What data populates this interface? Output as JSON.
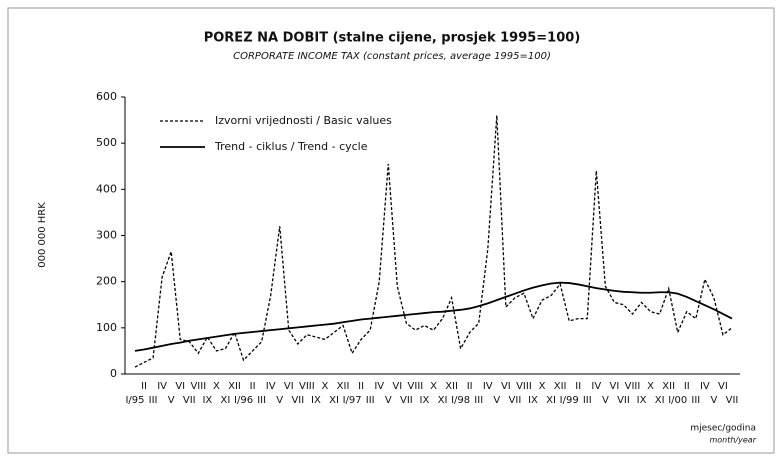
{
  "chart_data": {
    "type": "line",
    "title": "POREZ NA DOBIT (stalne cijene, prosjek 1995=100)",
    "subtitle": "CORPORATE INCOME TAX (constant prices, average 1995=100)",
    "y_label": "000 000 HRK",
    "x_label": "mjesec/godina",
    "x_label_en": "month/year",
    "categories": [
      "I/95",
      "II",
      "III",
      "IV",
      "V",
      "VI",
      "VII",
      "VIII",
      "IX",
      "X",
      "XI",
      "XII",
      "I/96",
      "II",
      "III",
      "IV",
      "V",
      "VI",
      "VII",
      "VIII",
      "IX",
      "X",
      "XI",
      "XII",
      "I/97",
      "II",
      "III",
      "IV",
      "V",
      "VI",
      "VII",
      "VIII",
      "IX",
      "X",
      "XI",
      "XII",
      "I/98",
      "II",
      "III",
      "IV",
      "V",
      "VI",
      "VII",
      "VIII",
      "IX",
      "X",
      "XI",
      "XII",
      "I/99",
      "II",
      "III",
      "IV",
      "V",
      "VI",
      "VII",
      "VIII",
      "IX",
      "X",
      "XI",
      "XII",
      "I/00",
      "II",
      "III",
      "IV",
      "V",
      "VI",
      "VII"
    ],
    "series": [
      {
        "name": "Izvorni vrijednosti / Basic values",
        "color": "#000000",
        "dash": true,
        "values": [
          15,
          25,
          35,
          210,
          265,
          75,
          70,
          45,
          80,
          50,
          55,
          90,
          30,
          50,
          70,
          170,
          320,
          95,
          65,
          85,
          80,
          75,
          90,
          105,
          45,
          75,
          95,
          200,
          455,
          190,
          110,
          95,
          105,
          95,
          120,
          165,
          55,
          90,
          110,
          270,
          560,
          145,
          165,
          175,
          120,
          160,
          170,
          195,
          115,
          120,
          120,
          440,
          190,
          155,
          150,
          130,
          155,
          135,
          130,
          185,
          90,
          135,
          120,
          205,
          165,
          85,
          100
        ]
      },
      {
        "name": "Trend - ciklus / Trend - cycle",
        "color": "#000000",
        "dash": false,
        "values": [
          50,
          53,
          57,
          61,
          65,
          68,
          72,
          75,
          78,
          81,
          84,
          87,
          89,
          91,
          93,
          95,
          97,
          99,
          101,
          103,
          105,
          107,
          109,
          112,
          115,
          118,
          120,
          122,
          124,
          126,
          128,
          130,
          132,
          134,
          135,
          137,
          139,
          142,
          147,
          153,
          160,
          167,
          174,
          181,
          187,
          192,
          196,
          198,
          197,
          194,
          190,
          186,
          183,
          180,
          178,
          177,
          176,
          176,
          177,
          177,
          174,
          167,
          158,
          149,
          140,
          130,
          120
        ]
      }
    ],
    "ylim": [
      0,
      600
    ],
    "yticks": [
      0,
      100,
      200,
      300,
      400,
      500,
      600
    ],
    "legend": "upper left"
  }
}
